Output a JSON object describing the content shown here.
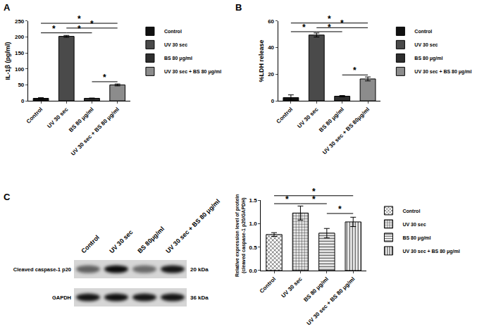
{
  "chart_data": [
    {
      "type": "bar",
      "title": "A",
      "y_label": "IL-1β (pg/ml)",
      "categories": [
        "Control",
        "UV 30 sec",
        "BS 80 μg/ml",
        "UV 30 sec + BS 80 μg/ml"
      ],
      "series": [
        {
          "name": "Control",
          "color": "#111111",
          "values": [
            8,
            null,
            null,
            null
          ],
          "errors": [
            2,
            null,
            null,
            null
          ]
        },
        {
          "name": "UV 30 sec",
          "color": "#4a4a4a",
          "values": [
            null,
            202,
            null,
            null
          ],
          "errors": [
            null,
            3,
            null,
            null
          ]
        },
        {
          "name": "BS 80 μg/ml",
          "color": "#2e2e2e",
          "values": [
            null,
            null,
            8,
            null
          ],
          "errors": [
            null,
            null,
            1,
            null
          ]
        },
        {
          "name": "UV 30 sec + BS 80 μg/ml",
          "color": "#8c8c8c",
          "values": [
            null,
            null,
            null,
            50
          ],
          "errors": [
            null,
            null,
            null,
            3
          ]
        }
      ],
      "ylim": [
        0,
        250
      ],
      "yticks": [
        0,
        50,
        100,
        150,
        200,
        250
      ],
      "legend": "right",
      "annotations": [
        {
          "from": 0,
          "to": 3,
          "y": 243,
          "text": "*"
        },
        {
          "from": 1,
          "to": 3,
          "y": 228,
          "text": "*"
        },
        {
          "from": 0,
          "to": 1,
          "y": 213,
          "text": "*"
        },
        {
          "from": 1,
          "to": 2,
          "y": 213,
          "text": "*"
        },
        {
          "from": 2,
          "to": 3,
          "y": 60,
          "text": "*"
        }
      ]
    },
    {
      "type": "bar",
      "title": "B",
      "y_label": "%LDH release",
      "categories": [
        "Control",
        "UV 30 sec",
        "BS 80 μg/ml",
        "UV 30 sec + BS 80μg/ml"
      ],
      "series": [
        {
          "name": "Control",
          "color": "#111111",
          "values": [
            2.5,
            null,
            null,
            null
          ],
          "errors": [
            2,
            null,
            null,
            null
          ]
        },
        {
          "name": "UV 30 sec",
          "color": "#4a4a4a",
          "values": [
            null,
            49.5,
            null,
            null
          ],
          "errors": [
            null,
            1.5,
            null,
            null
          ]
        },
        {
          "name": "BS 80 μg/ml",
          "color": "#2e2e2e",
          "values": [
            null,
            null,
            3.5,
            null
          ],
          "errors": [
            null,
            null,
            0.5,
            null
          ]
        },
        {
          "name": "UV 30 sec + BS 80 μg/ml",
          "color": "#8c8c8c",
          "values": [
            null,
            null,
            null,
            16.5
          ],
          "errors": [
            null,
            null,
            null,
            1.5
          ]
        }
      ],
      "ylim": [
        0,
        60
      ],
      "yticks": [
        0,
        20,
        40,
        60
      ],
      "legend": "right",
      "annotations": [
        {
          "from": 0,
          "to": 3,
          "y": 58.5,
          "text": "*"
        },
        {
          "from": 1,
          "to": 3,
          "y": 55,
          "text": "*"
        },
        {
          "from": 0,
          "to": 1,
          "y": 52,
          "text": "*"
        },
        {
          "from": 1,
          "to": 2,
          "y": 52,
          "text": "*"
        },
        {
          "from": 2,
          "to": 3,
          "y": 19.5,
          "text": "*"
        }
      ]
    },
    {
      "type": "bar",
      "title": "C",
      "y_label": "Relative expression level of protein\n(cleaved caspase-1 p20/GAPDH)",
      "categories": [
        "Control",
        "UV 30 sec",
        "BS 80 μg/ml",
        "UV 30 sec + BS 80 μg/ml"
      ],
      "series": [
        {
          "name": "Control",
          "color": "#ffffff",
          "marker": "crosshatch",
          "values": [
            0.77,
            null,
            null,
            null
          ],
          "errors": [
            0.04,
            null,
            null,
            null
          ]
        },
        {
          "name": "UV 30 sec",
          "color": "#ffffff",
          "marker": "grid",
          "values": [
            null,
            1.23,
            null,
            null
          ],
          "errors": [
            null,
            0.15,
            null,
            null
          ]
        },
        {
          "name": "BS 80 μg/ml",
          "color": "#ffffff",
          "marker": "horizontal",
          "values": [
            null,
            null,
            0.8,
            null
          ],
          "errors": [
            null,
            null,
            0.1,
            null
          ]
        },
        {
          "name": "UV 30 sec + BS 80 μg/ml",
          "color": "#ffffff",
          "marker": "vertical",
          "values": [
            null,
            null,
            null,
            1.04
          ],
          "errors": [
            null,
            null,
            null,
            0.1
          ]
        }
      ],
      "ylim": [
        0,
        1.5
      ],
      "yticks": [
        {
          "value": 0,
          "label": "0.0"
        },
        {
          "value": 0.5,
          "label": "0.5"
        },
        {
          "value": 1,
          "label": "1.0"
        },
        1.5
      ],
      "legend": "right",
      "annotations": [
        {
          "from": 0,
          "to": 3,
          "y": 1.6,
          "text": "*"
        },
        {
          "from": 0,
          "to": 1,
          "y": 1.43,
          "text": "*"
        },
        {
          "from": 1,
          "to": 2,
          "y": 1.43,
          "text": "*"
        },
        {
          "from": 2,
          "to": 3,
          "y": 1.22,
          "text": "*"
        }
      ]
    }
  ],
  "blot": {
    "lanes": [
      "Control",
      "UV 30 sec",
      "BS 80μg/ml",
      "UV 30 sec + BS 80 μg/ml"
    ],
    "rows": [
      {
        "label": "Cleaved caspase-1 p20",
        "size": "20 kDa"
      },
      {
        "label": "GAPDH",
        "size": "36 kDa"
      }
    ]
  }
}
